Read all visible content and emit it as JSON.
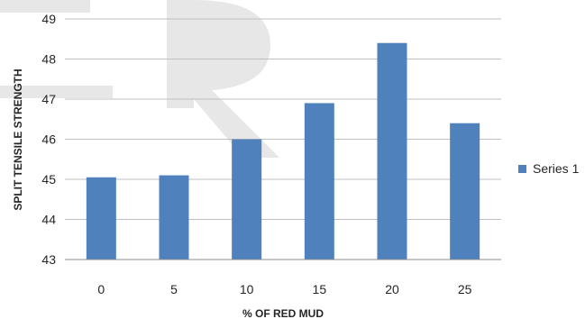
{
  "chart_data": {
    "type": "bar",
    "categories": [
      "0",
      "5",
      "10",
      "15",
      "20",
      "25"
    ],
    "series": [
      {
        "name": "Series 1",
        "values": [
          45.05,
          45.1,
          46.0,
          46.9,
          48.4,
          46.4
        ]
      }
    ],
    "xlabel": "% OF RED MUD",
    "ylabel": "SPLIT TENSILE STRENGTH",
    "ylim": [
      43,
      49
    ],
    "yticks": [
      "43",
      "44",
      "45",
      "46",
      "47",
      "48",
      "49"
    ],
    "grid": true,
    "legend_position": "right",
    "colors": {
      "bar": "#4f81bd",
      "grid": "#bfbfbf",
      "axis": "#8c8c8c",
      "watermark": "#d9d9d9"
    }
  }
}
